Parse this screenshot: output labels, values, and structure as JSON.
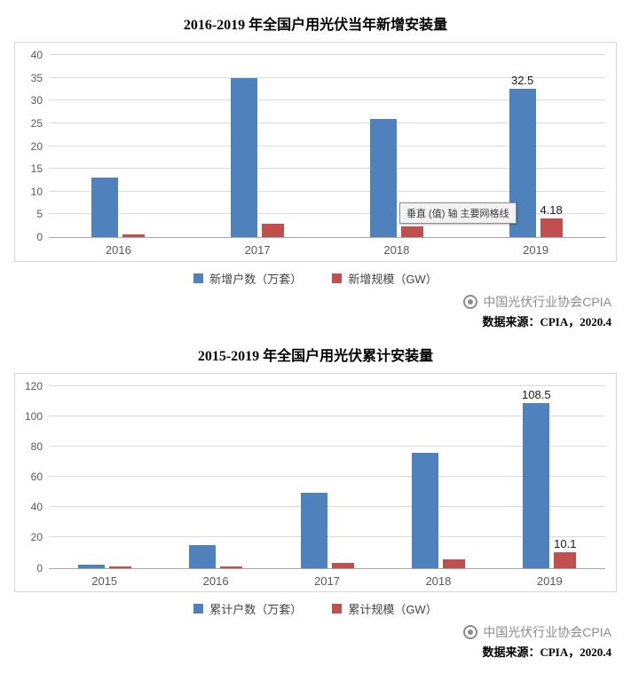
{
  "tooltip": {
    "text": "垂直 (值) 轴 主要网格线"
  },
  "charts_common": {
    "watermark": "中国光伏行业协会CPIA",
    "source": "数据来源：CPIA，2020.4"
  },
  "colors": {
    "series_blue": "#4F81BD",
    "series_red": "#C0504D",
    "gridline": "#dcdcdc",
    "axis_text": "#595959"
  },
  "chart_data": [
    {
      "type": "bar",
      "title": "2016-2019 年全国户用光伏当年新增安装量",
      "categories": [
        "2016",
        "2017",
        "2018",
        "2019"
      ],
      "xlabel": "",
      "ylabel": "",
      "ylim": [
        0,
        40
      ],
      "yticks": [
        0,
        5,
        10,
        15,
        20,
        25,
        30,
        35,
        40
      ],
      "grid": true,
      "legend_position": "bottom",
      "series": [
        {
          "name": "新增户数（万套）",
          "color": "#4F81BD",
          "values": [
            13,
            35,
            26,
            32.5
          ],
          "labels": [
            "",
            "",
            "",
            "32.5"
          ]
        },
        {
          "name": "新增规模（GW）",
          "color": "#C0504D",
          "values": [
            0.5,
            3,
            2.3,
            4.18
          ],
          "labels": [
            "",
            "",
            "",
            "4.18"
          ]
        }
      ]
    },
    {
      "type": "bar",
      "title": "2015-2019 年全国户用光伏累计安装量",
      "categories": [
        "2015",
        "2016",
        "2017",
        "2018",
        "2019"
      ],
      "xlabel": "",
      "ylabel": "",
      "ylim": [
        0,
        120
      ],
      "yticks": [
        0,
        20,
        40,
        60,
        80,
        100,
        120
      ],
      "grid": true,
      "legend_position": "bottom",
      "series": [
        {
          "name": "累计户数（万套）",
          "color": "#4F81BD",
          "values": [
            2,
            15,
            49.5,
            76,
            108.5
          ],
          "labels": [
            "",
            "",
            "",
            "",
            "108.5"
          ]
        },
        {
          "name": "累计规模（GW）",
          "color": "#C0504D",
          "values": [
            1,
            1,
            3.5,
            5.5,
            10.1
          ],
          "labels": [
            "",
            "",
            "",
            "",
            "10.1"
          ]
        }
      ]
    }
  ]
}
